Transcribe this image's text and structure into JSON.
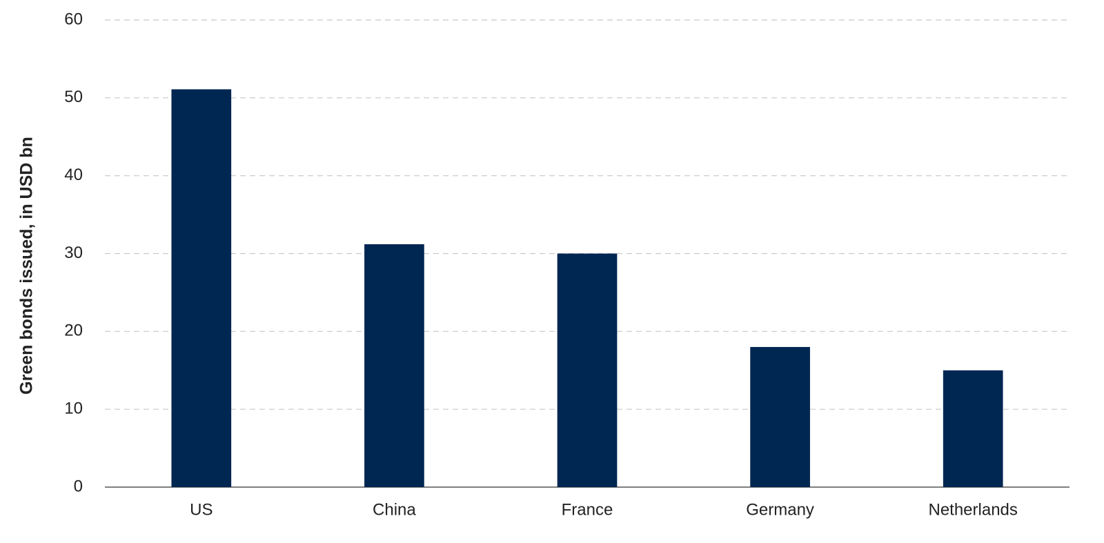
{
  "chart_data": {
    "type": "bar",
    "y_label": "Green bonds issued, in USD bn",
    "categories": [
      "US",
      "China",
      "France",
      "Germany",
      "Netherlands"
    ],
    "values": [
      51.1,
      31.2,
      30,
      18,
      15
    ],
    "color": "#002652",
    "ylim": [
      0,
      60
    ],
    "yticks": [
      0,
      10,
      20,
      30,
      40,
      50,
      60
    ],
    "grid": true
  }
}
